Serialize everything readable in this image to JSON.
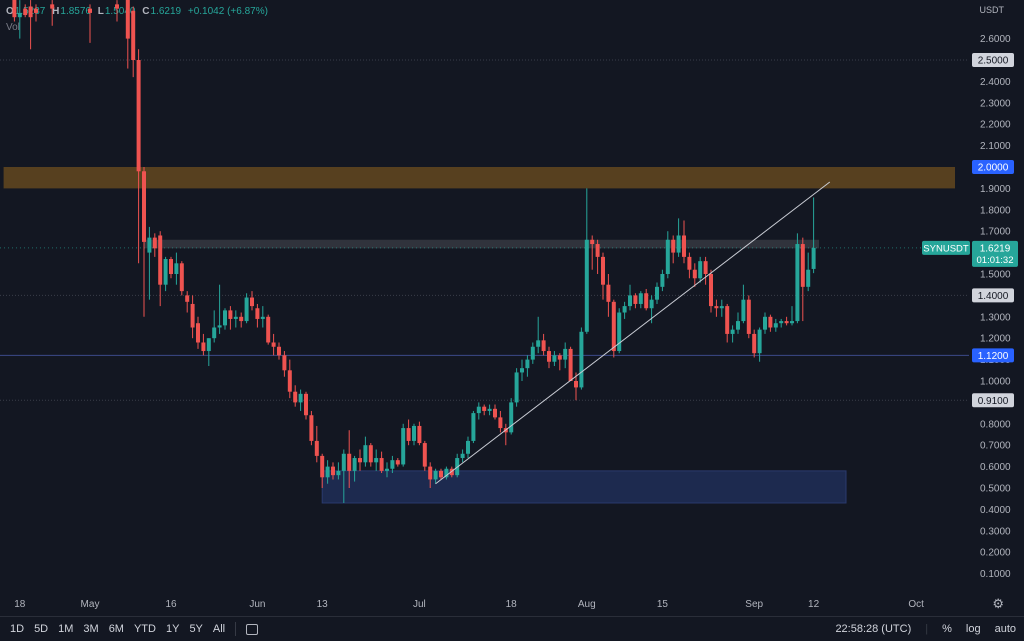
{
  "ohlc": {
    "o_label": "O",
    "o": "1.5237",
    "h_label": "H",
    "h": "1.8576",
    "l_label": "L",
    "l": "1.5040",
    "c_label": "C",
    "c": "1.6219",
    "change": "+0.1042 (+6.87%)"
  },
  "volume_label": "Vol",
  "currency": "USDT",
  "symbol_tag": {
    "symbol": "SYNUSDT",
    "price": "1.6219",
    "countdown": "01:01:32"
  },
  "price_labels": [
    "2.5000",
    "2.0000",
    "1.4000",
    "1.1200",
    "0.9100"
  ],
  "bottom_bar": {
    "ranges": [
      "1D",
      "5D",
      "1M",
      "3M",
      "6M",
      "YTD",
      "1Y",
      "5Y",
      "All"
    ],
    "time": "22:58:28 (UTC)",
    "percent": "%",
    "log": "log",
    "auto": "auto"
  },
  "colors": {
    "up": "#26a69a",
    "down": "#ef5350",
    "background": "#131722",
    "orange_zone": "#5b4220",
    "blue_zone": "#1d2b52",
    "grey_zone": "#3b3d45"
  },
  "chart_data": {
    "type": "candlestick",
    "symbol": "SYNUSDT",
    "interval": "1D",
    "x_ticks": [
      "18",
      "May",
      "16",
      "Jun",
      "13",
      "Jul",
      "18",
      "Aug",
      "15",
      "Sep",
      "12",
      "Oct"
    ],
    "y_ticks": [
      "2.6000",
      "2.5000",
      "2.4000",
      "2.3000",
      "2.2000",
      "2.1000",
      "2.0000",
      "1.9000",
      "1.8000",
      "1.7000",
      "1.6000",
      "1.5000",
      "1.4000",
      "1.3000",
      "1.2000",
      "1.1000",
      "1.0000",
      "0.9000",
      "0.8000",
      "0.7000",
      "0.6000",
      "0.5000",
      "0.4000",
      "0.3000",
      "0.2000",
      "0.1000"
    ],
    "ylim": [
      0.05,
      2.7
    ],
    "horizontal_levels": [
      2.5,
      1.4,
      1.12,
      0.91
    ],
    "zones": [
      {
        "from": "Apr 15",
        "to": "Oct 20",
        "low": 1.9,
        "high": 2.0,
        "color": "#5b4220"
      },
      {
        "from": "May 11",
        "to": "Sep 13",
        "low": 1.62,
        "high": 1.66,
        "color": "#3b3d45"
      },
      {
        "from": "Jun 13",
        "to": "Sep 18",
        "low": 0.43,
        "high": 0.58,
        "color": "#1d2b52"
      }
    ],
    "trendline": {
      "start": {
        "date": "Jul 4",
        "price": 0.52
      },
      "end": {
        "date": "Sep 15",
        "price": 1.93
      }
    },
    "last": {
      "price": 1.6219,
      "countdown": "01:01:32"
    },
    "candles": [
      {
        "date": "Apr 17",
        "o": 2.82,
        "h": 2.84,
        "l": 2.68,
        "c": 2.7
      },
      {
        "date": "Apr 18",
        "o": 2.7,
        "h": 2.78,
        "l": 2.6,
        "c": 2.72
      },
      {
        "date": "Apr 19",
        "o": 2.74,
        "h": 2.76,
        "l": 2.7,
        "c": 2.71
      },
      {
        "date": "Apr 20",
        "o": 2.75,
        "h": 2.78,
        "l": 2.55,
        "c": 2.7
      },
      {
        "date": "Apr 21",
        "o": 2.74,
        "h": 2.76,
        "l": 2.68,
        "c": 2.72
      },
      {
        "date": "Apr 24",
        "o": 2.76,
        "h": 2.78,
        "l": 2.66,
        "c": 2.74
      },
      {
        "date": "May 1",
        "o": 2.74,
        "h": 2.76,
        "l": 2.58,
        "c": 2.72
      },
      {
        "date": "May 6",
        "o": 2.76,
        "h": 2.78,
        "l": 2.68,
        "c": 2.74
      },
      {
        "date": "May 8",
        "o": 2.8,
        "h": 2.82,
        "l": 2.46,
        "c": 2.6
      },
      {
        "date": "May 9",
        "o": 2.73,
        "h": 2.75,
        "l": 2.42,
        "c": 2.5
      },
      {
        "date": "May 10",
        "o": 2.5,
        "h": 2.55,
        "l": 1.55,
        "c": 1.98
      },
      {
        "date": "May 11",
        "o": 1.98,
        "h": 2.0,
        "l": 1.3,
        "c": 1.65
      },
      {
        "date": "May 12",
        "o": 1.6,
        "h": 1.72,
        "l": 1.38,
        "c": 1.67
      },
      {
        "date": "May 13",
        "o": 1.67,
        "h": 1.69,
        "l": 1.58,
        "c": 1.62
      },
      {
        "date": "May 14",
        "o": 1.68,
        "h": 1.7,
        "l": 1.35,
        "c": 1.45
      },
      {
        "date": "May 15",
        "o": 1.45,
        "h": 1.58,
        "l": 1.42,
        "c": 1.57
      },
      {
        "date": "May 16",
        "o": 1.57,
        "h": 1.58,
        "l": 1.48,
        "c": 1.5
      },
      {
        "date": "May 17",
        "o": 1.5,
        "h": 1.6,
        "l": 1.45,
        "c": 1.55
      },
      {
        "date": "May 18",
        "o": 1.55,
        "h": 1.56,
        "l": 1.4,
        "c": 1.42
      },
      {
        "date": "May 19",
        "o": 1.4,
        "h": 1.42,
        "l": 1.32,
        "c": 1.37
      },
      {
        "date": "May 20",
        "o": 1.36,
        "h": 1.4,
        "l": 1.2,
        "c": 1.25
      },
      {
        "date": "May 21",
        "o": 1.27,
        "h": 1.3,
        "l": 1.15,
        "c": 1.18
      },
      {
        "date": "May 22",
        "o": 1.18,
        "h": 1.22,
        "l": 1.12,
        "c": 1.14
      },
      {
        "date": "May 23",
        "o": 1.14,
        "h": 1.2,
        "l": 1.07,
        "c": 1.2
      },
      {
        "date": "May 24",
        "o": 1.2,
        "h": 1.33,
        "l": 1.18,
        "c": 1.25
      },
      {
        "date": "May 25",
        "o": 1.25,
        "h": 1.45,
        "l": 1.22,
        "c": 1.26
      },
      {
        "date": "May 26",
        "o": 1.26,
        "h": 1.34,
        "l": 1.24,
        "c": 1.33
      },
      {
        "date": "May 27",
        "o": 1.33,
        "h": 1.35,
        "l": 1.24,
        "c": 1.29
      },
      {
        "date": "May 28",
        "o": 1.29,
        "h": 1.33,
        "l": 1.25,
        "c": 1.3
      },
      {
        "date": "May 29",
        "o": 1.3,
        "h": 1.32,
        "l": 1.25,
        "c": 1.28
      },
      {
        "date": "May 30",
        "o": 1.28,
        "h": 1.41,
        "l": 1.27,
        "c": 1.39
      },
      {
        "date": "May 31",
        "o": 1.39,
        "h": 1.42,
        "l": 1.33,
        "c": 1.35
      },
      {
        "date": "Jun 1",
        "o": 1.34,
        "h": 1.36,
        "l": 1.25,
        "c": 1.29
      },
      {
        "date": "Jun 2",
        "o": 1.29,
        "h": 1.35,
        "l": 1.25,
        "c": 1.3
      },
      {
        "date": "Jun 3",
        "o": 1.3,
        "h": 1.31,
        "l": 1.17,
        "c": 1.18
      },
      {
        "date": "Jun 4",
        "o": 1.18,
        "h": 1.22,
        "l": 1.12,
        "c": 1.16
      },
      {
        "date": "Jun 5",
        "o": 1.16,
        "h": 1.18,
        "l": 1.1,
        "c": 1.12
      },
      {
        "date": "Jun 6",
        "o": 1.12,
        "h": 1.14,
        "l": 1.02,
        "c": 1.05
      },
      {
        "date": "Jun 7",
        "o": 1.05,
        "h": 1.1,
        "l": 0.92,
        "c": 0.95
      },
      {
        "date": "Jun 8",
        "o": 0.95,
        "h": 0.98,
        "l": 0.88,
        "c": 0.9
      },
      {
        "date": "Jun 9",
        "o": 0.9,
        "h": 0.96,
        "l": 0.86,
        "c": 0.94
      },
      {
        "date": "Jun 10",
        "o": 0.94,
        "h": 0.95,
        "l": 0.82,
        "c": 0.84
      },
      {
        "date": "Jun 11",
        "o": 0.84,
        "h": 0.86,
        "l": 0.7,
        "c": 0.72
      },
      {
        "date": "Jun 12",
        "o": 0.72,
        "h": 0.79,
        "l": 0.62,
        "c": 0.65
      },
      {
        "date": "Jun 13",
        "o": 0.65,
        "h": 0.66,
        "l": 0.5,
        "c": 0.55
      },
      {
        "date": "Jun 14",
        "o": 0.55,
        "h": 0.63,
        "l": 0.52,
        "c": 0.6
      },
      {
        "date": "Jun 15",
        "o": 0.6,
        "h": 0.62,
        "l": 0.54,
        "c": 0.56
      },
      {
        "date": "Jun 16",
        "o": 0.56,
        "h": 0.62,
        "l": 0.54,
        "c": 0.58
      },
      {
        "date": "Jun 17",
        "o": 0.58,
        "h": 0.68,
        "l": 0.43,
        "c": 0.66
      },
      {
        "date": "Jun 18",
        "o": 0.66,
        "h": 0.77,
        "l": 0.5,
        "c": 0.58
      },
      {
        "date": "Jun 19",
        "o": 0.58,
        "h": 0.65,
        "l": 0.53,
        "c": 0.64
      },
      {
        "date": "Jun 20",
        "o": 0.64,
        "h": 0.68,
        "l": 0.58,
        "c": 0.62
      },
      {
        "date": "Jun 21",
        "o": 0.62,
        "h": 0.74,
        "l": 0.6,
        "c": 0.7
      },
      {
        "date": "Jun 22",
        "o": 0.7,
        "h": 0.71,
        "l": 0.6,
        "c": 0.62
      },
      {
        "date": "Jun 23",
        "o": 0.62,
        "h": 0.68,
        "l": 0.58,
        "c": 0.64
      },
      {
        "date": "Jun 24",
        "o": 0.64,
        "h": 0.67,
        "l": 0.57,
        "c": 0.58
      },
      {
        "date": "Jun 25",
        "o": 0.58,
        "h": 0.62,
        "l": 0.55,
        "c": 0.59
      },
      {
        "date": "Jun 26",
        "o": 0.59,
        "h": 0.65,
        "l": 0.57,
        "c": 0.63
      },
      {
        "date": "Jun 27",
        "o": 0.63,
        "h": 0.64,
        "l": 0.6,
        "c": 0.61
      },
      {
        "date": "Jun 28",
        "o": 0.61,
        "h": 0.8,
        "l": 0.6,
        "c": 0.78
      },
      {
        "date": "Jun 29",
        "o": 0.78,
        "h": 0.82,
        "l": 0.7,
        "c": 0.72
      },
      {
        "date": "Jun 30",
        "o": 0.72,
        "h": 0.8,
        "l": 0.7,
        "c": 0.79
      },
      {
        "date": "Jul 1",
        "o": 0.79,
        "h": 0.81,
        "l": 0.7,
        "c": 0.71
      },
      {
        "date": "Jul 2",
        "o": 0.71,
        "h": 0.72,
        "l": 0.58,
        "c": 0.6
      },
      {
        "date": "Jul 3",
        "o": 0.6,
        "h": 0.62,
        "l": 0.5,
        "c": 0.54
      },
      {
        "date": "Jul 4",
        "o": 0.54,
        "h": 0.59,
        "l": 0.52,
        "c": 0.58
      },
      {
        "date": "Jul 5",
        "o": 0.58,
        "h": 0.59,
        "l": 0.54,
        "c": 0.55
      },
      {
        "date": "Jul 6",
        "o": 0.55,
        "h": 0.6,
        "l": 0.54,
        "c": 0.59
      },
      {
        "date": "Jul 7",
        "o": 0.59,
        "h": 0.6,
        "l": 0.55,
        "c": 0.56
      },
      {
        "date": "Jul 8",
        "o": 0.56,
        "h": 0.66,
        "l": 0.55,
        "c": 0.64
      },
      {
        "date": "Jul 9",
        "o": 0.64,
        "h": 0.68,
        "l": 0.62,
        "c": 0.66
      },
      {
        "date": "Jul 10",
        "o": 0.66,
        "h": 0.74,
        "l": 0.64,
        "c": 0.72
      },
      {
        "date": "Jul 11",
        "o": 0.72,
        "h": 0.86,
        "l": 0.71,
        "c": 0.85
      },
      {
        "date": "Jul 12",
        "o": 0.85,
        "h": 0.9,
        "l": 0.82,
        "c": 0.88
      },
      {
        "date": "Jul 13",
        "o": 0.88,
        "h": 0.89,
        "l": 0.84,
        "c": 0.86
      },
      {
        "date": "Jul 14",
        "o": 0.86,
        "h": 0.89,
        "l": 0.84,
        "c": 0.87
      },
      {
        "date": "Jul 15",
        "o": 0.87,
        "h": 0.89,
        "l": 0.82,
        "c": 0.83
      },
      {
        "date": "Jul 16",
        "o": 0.83,
        "h": 0.86,
        "l": 0.76,
        "c": 0.78
      },
      {
        "date": "Jul 17",
        "o": 0.78,
        "h": 0.8,
        "l": 0.7,
        "c": 0.76
      },
      {
        "date": "Jul 18",
        "o": 0.76,
        "h": 0.92,
        "l": 0.75,
        "c": 0.9
      },
      {
        "date": "Jul 19",
        "o": 0.9,
        "h": 1.06,
        "l": 0.88,
        "c": 1.04
      },
      {
        "date": "Jul 20",
        "o": 1.04,
        "h": 1.1,
        "l": 1.0,
        "c": 1.06
      },
      {
        "date": "Jul 21",
        "o": 1.06,
        "h": 1.12,
        "l": 1.02,
        "c": 1.1
      },
      {
        "date": "Jul 22",
        "o": 1.1,
        "h": 1.18,
        "l": 1.08,
        "c": 1.16
      },
      {
        "date": "Jul 23",
        "o": 1.16,
        "h": 1.3,
        "l": 1.13,
        "c": 1.19
      },
      {
        "date": "Jul 24",
        "o": 1.19,
        "h": 1.22,
        "l": 1.12,
        "c": 1.14
      },
      {
        "date": "Jul 25",
        "o": 1.14,
        "h": 1.16,
        "l": 1.06,
        "c": 1.09
      },
      {
        "date": "Jul 26",
        "o": 1.09,
        "h": 1.14,
        "l": 1.07,
        "c": 1.12
      },
      {
        "date": "Jul 27",
        "o": 1.12,
        "h": 1.13,
        "l": 1.05,
        "c": 1.1
      },
      {
        "date": "Jul 28",
        "o": 1.1,
        "h": 1.18,
        "l": 1.06,
        "c": 1.15
      },
      {
        "date": "Jul 29",
        "o": 1.15,
        "h": 1.16,
        "l": 1.0,
        "c": 1.0
      },
      {
        "date": "Jul 30",
        "o": 1.0,
        "h": 1.04,
        "l": 0.91,
        "c": 0.97
      },
      {
        "date": "Jul 31",
        "o": 0.97,
        "h": 1.25,
        "l": 0.96,
        "c": 1.23
      },
      {
        "date": "Aug 1",
        "o": 1.23,
        "h": 1.9,
        "l": 1.22,
        "c": 1.66
      },
      {
        "date": "Aug 2",
        "o": 1.66,
        "h": 1.68,
        "l": 1.52,
        "c": 1.64
      },
      {
        "date": "Aug 3",
        "o": 1.64,
        "h": 1.66,
        "l": 1.5,
        "c": 1.58
      },
      {
        "date": "Aug 4",
        "o": 1.58,
        "h": 1.6,
        "l": 1.38,
        "c": 1.45
      },
      {
        "date": "Aug 5",
        "o": 1.45,
        "h": 1.5,
        "l": 1.3,
        "c": 1.37
      },
      {
        "date": "Aug 6",
        "o": 1.37,
        "h": 1.38,
        "l": 1.11,
        "c": 1.14
      },
      {
        "date": "Aug 7",
        "o": 1.14,
        "h": 1.34,
        "l": 1.13,
        "c": 1.32
      },
      {
        "date": "Aug 8",
        "o": 1.32,
        "h": 1.37,
        "l": 1.29,
        "c": 1.35
      },
      {
        "date": "Aug 9",
        "o": 1.35,
        "h": 1.45,
        "l": 1.33,
        "c": 1.4
      },
      {
        "date": "Aug 10",
        "o": 1.4,
        "h": 1.41,
        "l": 1.34,
        "c": 1.36
      },
      {
        "date": "Aug 11",
        "o": 1.36,
        "h": 1.42,
        "l": 1.34,
        "c": 1.41
      },
      {
        "date": "Aug 12",
        "o": 1.41,
        "h": 1.43,
        "l": 1.33,
        "c": 1.34
      },
      {
        "date": "Aug 13",
        "o": 1.34,
        "h": 1.4,
        "l": 1.27,
        "c": 1.38
      },
      {
        "date": "Aug 14",
        "o": 1.38,
        "h": 1.46,
        "l": 1.36,
        "c": 1.44
      },
      {
        "date": "Aug 15",
        "o": 1.44,
        "h": 1.52,
        "l": 1.42,
        "c": 1.5
      },
      {
        "date": "Aug 16",
        "o": 1.5,
        "h": 1.7,
        "l": 1.48,
        "c": 1.66
      },
      {
        "date": "Aug 17",
        "o": 1.66,
        "h": 1.68,
        "l": 1.55,
        "c": 1.6
      },
      {
        "date": "Aug 18",
        "o": 1.6,
        "h": 1.76,
        "l": 1.58,
        "c": 1.68
      },
      {
        "date": "Aug 19",
        "o": 1.68,
        "h": 1.75,
        "l": 1.55,
        "c": 1.58
      },
      {
        "date": "Aug 20",
        "o": 1.58,
        "h": 1.6,
        "l": 1.48,
        "c": 1.52
      },
      {
        "date": "Aug 21",
        "o": 1.52,
        "h": 1.55,
        "l": 1.44,
        "c": 1.48
      },
      {
        "date": "Aug 22",
        "o": 1.48,
        "h": 1.58,
        "l": 1.46,
        "c": 1.56
      },
      {
        "date": "Aug 23",
        "o": 1.56,
        "h": 1.58,
        "l": 1.45,
        "c": 1.5
      },
      {
        "date": "Aug 24",
        "o": 1.5,
        "h": 1.52,
        "l": 1.32,
        "c": 1.35
      },
      {
        "date": "Aug 25",
        "o": 1.35,
        "h": 1.38,
        "l": 1.3,
        "c": 1.34
      },
      {
        "date": "Aug 26",
        "o": 1.34,
        "h": 1.38,
        "l": 1.3,
        "c": 1.35
      },
      {
        "date": "Aug 27",
        "o": 1.35,
        "h": 1.36,
        "l": 1.18,
        "c": 1.22
      },
      {
        "date": "Aug 28",
        "o": 1.22,
        "h": 1.26,
        "l": 1.18,
        "c": 1.24
      },
      {
        "date": "Aug 29",
        "o": 1.24,
        "h": 1.32,
        "l": 1.22,
        "c": 1.28
      },
      {
        "date": "Aug 30",
        "o": 1.28,
        "h": 1.45,
        "l": 1.27,
        "c": 1.38
      },
      {
        "date": "Aug 31",
        "o": 1.38,
        "h": 1.4,
        "l": 1.2,
        "c": 1.22
      },
      {
        "date": "Sep 1",
        "o": 1.22,
        "h": 1.24,
        "l": 1.11,
        "c": 1.13
      },
      {
        "date": "Sep 2",
        "o": 1.13,
        "h": 1.25,
        "l": 1.09,
        "c": 1.24
      },
      {
        "date": "Sep 3",
        "o": 1.24,
        "h": 1.32,
        "l": 1.22,
        "c": 1.3
      },
      {
        "date": "Sep 4",
        "o": 1.3,
        "h": 1.31,
        "l": 1.23,
        "c": 1.25
      },
      {
        "date": "Sep 5",
        "o": 1.25,
        "h": 1.29,
        "l": 1.23,
        "c": 1.27
      },
      {
        "date": "Sep 6",
        "o": 1.27,
        "h": 1.29,
        "l": 1.25,
        "c": 1.28
      },
      {
        "date": "Sep 7",
        "o": 1.28,
        "h": 1.3,
        "l": 1.26,
        "c": 1.27
      },
      {
        "date": "Sep 8",
        "o": 1.27,
        "h": 1.35,
        "l": 1.26,
        "c": 1.28
      },
      {
        "date": "Sep 9",
        "o": 1.28,
        "h": 1.69,
        "l": 1.27,
        "c": 1.64
      },
      {
        "date": "Sep 10",
        "o": 1.64,
        "h": 1.67,
        "l": 1.28,
        "c": 1.44
      },
      {
        "date": "Sep 11",
        "o": 1.44,
        "h": 1.6,
        "l": 1.42,
        "c": 1.52
      },
      {
        "date": "Sep 12",
        "o": 1.5237,
        "h": 1.8576,
        "l": 1.504,
        "c": 1.6219
      }
    ]
  }
}
